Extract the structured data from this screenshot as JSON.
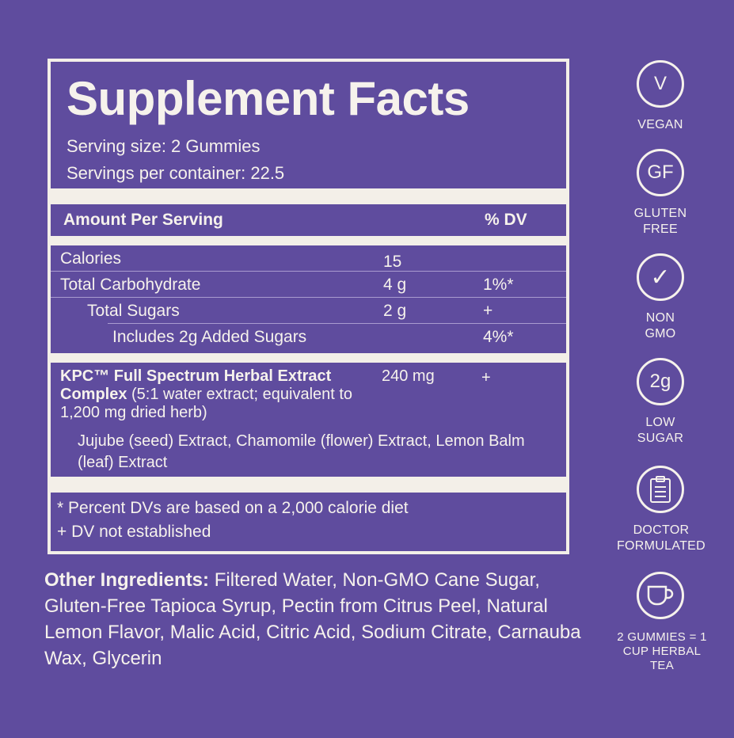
{
  "title": "Supplement Facts",
  "serving_size": "Serving size: 2 Gummies",
  "servings_per_container": "Servings per container: 22.5",
  "header": {
    "amount": "Amount Per Serving",
    "dv": "% DV"
  },
  "nutrients": [
    {
      "name": "Calories",
      "amount": "15",
      "dv": ""
    },
    {
      "name": "Total Carbohydrate",
      "amount": "4 g",
      "dv": "1%*"
    },
    {
      "name": "Total Sugars",
      "amount": "2 g",
      "dv": "+"
    },
    {
      "name": "Includes 2g Added Sugars",
      "amount": "",
      "dv": "4%*"
    }
  ],
  "kpc": {
    "name_bold": "KPC™ Full Spectrum Herbal Extract Complex",
    "name_rest": " (5:1 water extract; equivalent to 1,200 mg dried herb)",
    "amount": "240 mg",
    "dv": "+",
    "ingredients": "Jujube (seed) Extract, Chamomile (flower) Extract, Lemon Balm (leaf) Extract"
  },
  "footnotes": [
    "* Percent DVs are based on a 2,000 calorie diet",
    "+ DV not established"
  ],
  "other": {
    "label": "Other Ingredients:",
    "text": " Filtered Water, Non-GMO Cane Sugar, Gluten-Free Tapioca Syrup, Pectin from Citrus Peel, Natural Lemon Flavor, Malic Acid, Citric Acid, Sodium Citrate, Carnauba Wax, Glycerin"
  },
  "badges": [
    {
      "icon": "vegan-icon",
      "glyph": "V",
      "label": "VEGAN"
    },
    {
      "icon": "gluten-free-icon",
      "glyph": "GF",
      "label": "GLUTEN FREE"
    },
    {
      "icon": "checkmark-icon",
      "glyph": "✓",
      "label": "NON GMO"
    },
    {
      "icon": "low-sugar-icon",
      "glyph": "2g",
      "label": "LOW SUGAR"
    },
    {
      "icon": "clipboard-icon",
      "glyph": "",
      "label": "DOCTOR FORMULATED"
    },
    {
      "icon": "cup-icon",
      "glyph": "",
      "label": "2 GUMMIES = 1 CUP HERBAL TEA"
    }
  ],
  "colors": {
    "background": "#5f4c9e",
    "cream": "#f3efe8"
  }
}
